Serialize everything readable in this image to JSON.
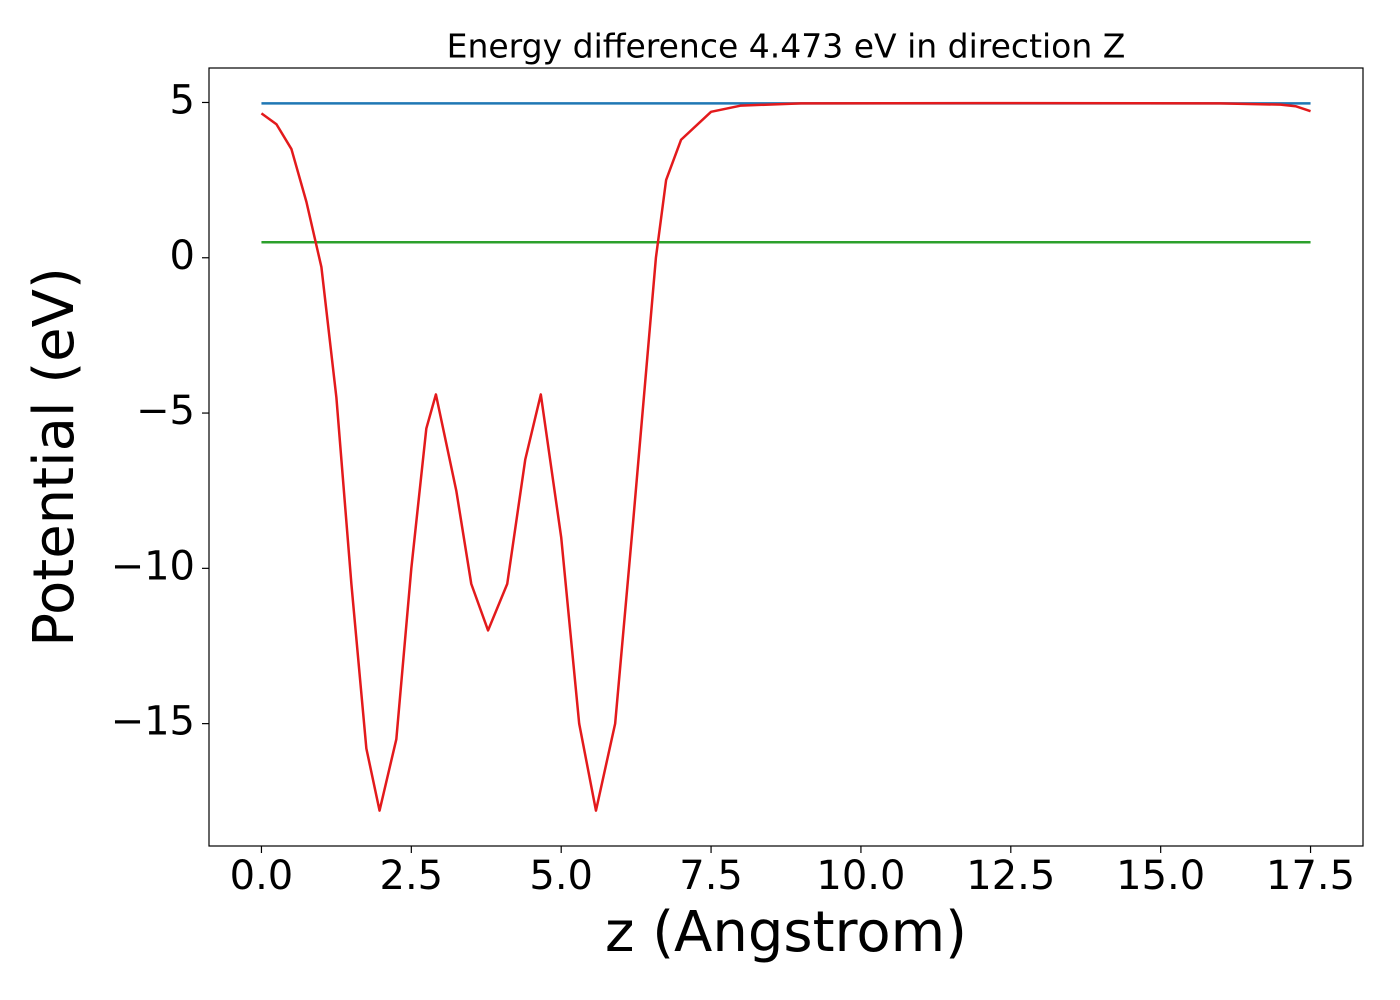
{
  "chart_data": {
    "type": "line",
    "title": "Energy difference 4.473 eV in direction Z",
    "x_label": "z (Angstrom)",
    "y_label": "Potential (eV)",
    "xlim": [
      -0.875,
      18.375
    ],
    "ylim": [
      -18.94,
      6.11
    ],
    "xticks": [
      {
        "value": 0,
        "label": "0.0"
      },
      2.5,
      {
        "value": 5,
        "label": "5.0"
      },
      7.5,
      {
        "value": 10,
        "label": "10.0"
      },
      12.5,
      {
        "value": 15,
        "label": "15.0"
      },
      17.5
    ],
    "yticks": [
      {
        "value": -15,
        "label": "−15"
      },
      {
        "value": -10,
        "label": "−10"
      },
      {
        "value": -5,
        "label": "−5"
      },
      0,
      5
    ],
    "grid": false,
    "series": [
      {
        "color": "#1f77b4",
        "x": [
          0,
          17.5
        ],
        "values": [
          4.97,
          4.97
        ]
      },
      {
        "color": "#2ca02c",
        "x": [
          0,
          17.5
        ],
        "values": [
          0.5,
          0.5
        ]
      },
      {
        "color": "#e31a1c",
        "x": [
          0,
          0.25,
          0.5,
          0.75,
          1.0,
          1.25,
          1.5,
          1.75,
          1.97,
          2.25,
          2.5,
          2.75,
          2.91,
          3.25,
          3.5,
          3.78,
          4.1,
          4.4,
          4.66,
          5.0,
          5.3,
          5.58,
          5.9,
          6.2,
          6.58,
          6.75,
          7.0,
          7.5,
          8.0,
          9.0,
          12.0,
          16.0,
          17.0,
          17.25,
          17.5
        ],
        "values": [
          4.65,
          4.3,
          3.5,
          1.8,
          -0.3,
          -4.5,
          -10.5,
          -15.8,
          -17.8,
          -15.5,
          -10,
          -5.5,
          -4.4,
          -7.5,
          -10.5,
          -12,
          -10.5,
          -6.5,
          -4.4,
          -9,
          -15,
          -17.8,
          -15,
          -8.5,
          0,
          2.5,
          3.8,
          4.7,
          4.9,
          4.97,
          4.98,
          4.97,
          4.93,
          4.88,
          4.72
        ]
      }
    ]
  }
}
